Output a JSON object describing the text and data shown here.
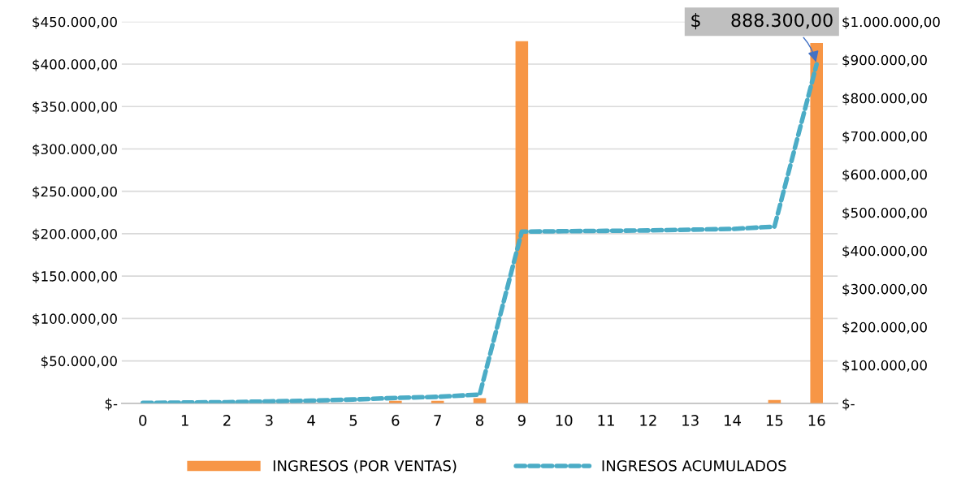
{
  "chart_data": {
    "type": "bar",
    "categories": [
      "0",
      "1",
      "2",
      "3",
      "4",
      "5",
      "6",
      "7",
      "8",
      "9",
      "10",
      "11",
      "12",
      "13",
      "14",
      "15",
      "16"
    ],
    "series": [
      {
        "name": "INGRESOS (POR VENTAS)",
        "color": "#f79646",
        "values": [
          null,
          null,
          null,
          null,
          null,
          null,
          3000,
          3000,
          6000,
          427000,
          null,
          null,
          null,
          null,
          null,
          4000,
          425000
        ]
      },
      {
        "name": "INGRESOS ACUMULADOS",
        "type": "line",
        "axis": "y2",
        "color": "#4bacc6",
        "line_style": "dashed",
        "values": [
          1000,
          2000,
          3000,
          5000,
          7000,
          10000,
          14000,
          17000,
          23000,
          450000,
          451000,
          452000,
          453000,
          455000,
          457000,
          463000,
          888300
        ]
      }
    ],
    "ylim": [
      0,
      450000
    ],
    "yticks": [
      {
        "value": 0,
        "label": "$-"
      },
      {
        "value": 50000,
        "label": "$50.000,00"
      },
      {
        "value": 100000,
        "label": "$100.000,00"
      },
      {
        "value": 150000,
        "label": "$150.000,00"
      },
      {
        "value": 200000,
        "label": "$200.000,00"
      },
      {
        "value": 250000,
        "label": "$250.000,00"
      },
      {
        "value": 300000,
        "label": "$300.000,00"
      },
      {
        "value": 350000,
        "label": "$350.000,00"
      },
      {
        "value": 400000,
        "label": "$400.000,00"
      },
      {
        "value": 450000,
        "label": "$450.000,00"
      }
    ],
    "y2lim": [
      0,
      1000000
    ],
    "y2ticks": [
      {
        "value": 0,
        "label": "$-"
      },
      {
        "value": 100000,
        "label": "$100.000,00"
      },
      {
        "value": 200000,
        "label": "$200.000,00"
      },
      {
        "value": 300000,
        "label": "$300.000,00"
      },
      {
        "value": 400000,
        "label": "$400.000,00"
      },
      {
        "value": 500000,
        "label": "$500.000,00"
      },
      {
        "value": 600000,
        "label": "$600.000,00"
      },
      {
        "value": 700000,
        "label": "$700.000,00"
      },
      {
        "value": 800000,
        "label": "$800.000,00"
      },
      {
        "value": 900000,
        "label": "$900.000,00"
      },
      {
        "value": 1000000,
        "label": "$1.000.000,00"
      }
    ],
    "grid": "y",
    "legend": "bottom",
    "annotations": [
      "$     888.300,00"
    ]
  }
}
